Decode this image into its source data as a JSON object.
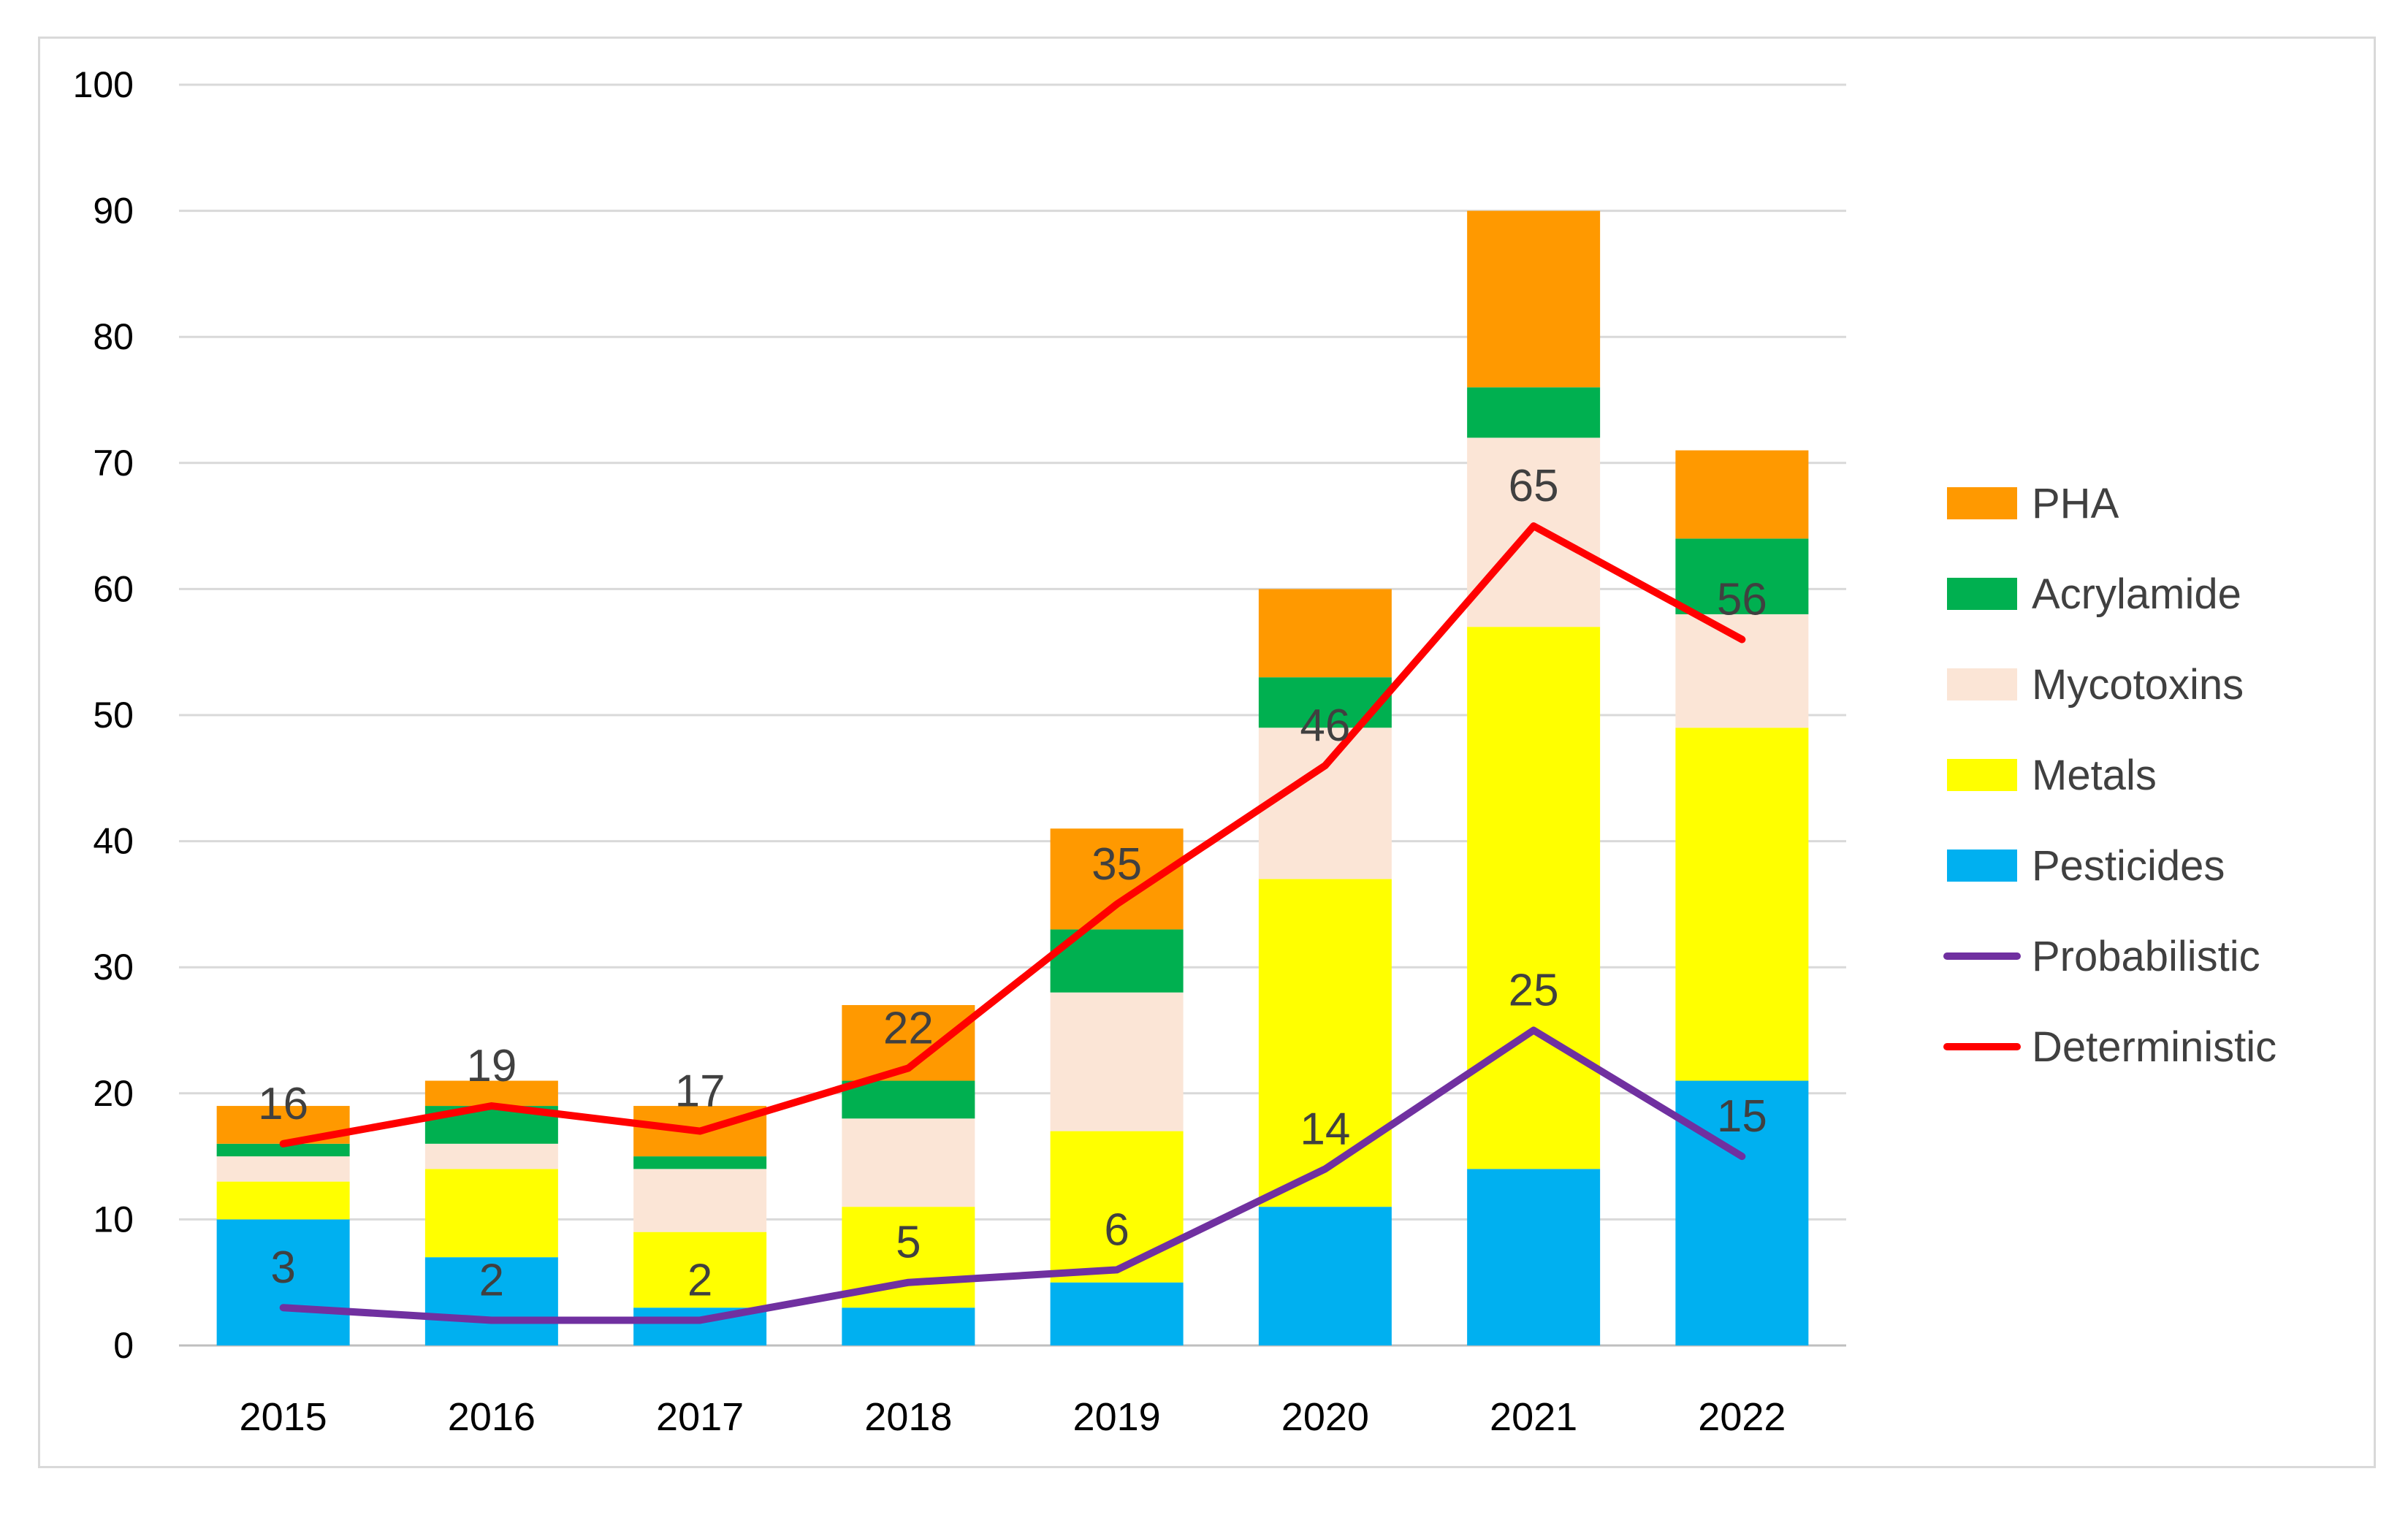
{
  "chart_data": {
    "type": "bar",
    "stacked": true,
    "title": "",
    "xlabel": "",
    "ylabel": "",
    "ylim": [
      0,
      100
    ],
    "yticks": [
      0,
      10,
      20,
      30,
      40,
      50,
      60,
      70,
      80,
      90,
      100
    ],
    "grid": true,
    "legend_position": "right",
    "categories": [
      "2015",
      "2016",
      "2017",
      "2018",
      "2019",
      "2020",
      "2021",
      "2022"
    ],
    "series": [
      {
        "name": "Pesticides",
        "kind": "bar",
        "color": "#00b0f0",
        "values": [
          10,
          7,
          3,
          3,
          5,
          11,
          14,
          21
        ]
      },
      {
        "name": "Metals",
        "kind": "bar",
        "color": "#ffff00",
        "values": [
          3,
          7,
          6,
          8,
          12,
          26,
          43,
          28
        ]
      },
      {
        "name": "Mycotoxins",
        "kind": "bar",
        "color": "#fbe5d6",
        "values": [
          2,
          2,
          5,
          7,
          11,
          12,
          15,
          9
        ]
      },
      {
        "name": "Acrylamide",
        "kind": "bar",
        "color": "#00b050",
        "values": [
          1,
          3,
          1,
          3,
          5,
          4,
          4,
          6
        ]
      },
      {
        "name": "PHA",
        "kind": "bar",
        "color": "#ff9900",
        "values": [
          3,
          2,
          4,
          6,
          8,
          7,
          14,
          7
        ]
      },
      {
        "name": "Probabilistic",
        "kind": "line",
        "color": "#7030a0",
        "values": [
          3,
          2,
          2,
          5,
          6,
          14,
          25,
          15
        ]
      },
      {
        "name": "Deterministic",
        "kind": "line",
        "color": "#ff0000",
        "values": [
          16,
          19,
          17,
          22,
          35,
          46,
          65,
          56
        ]
      }
    ],
    "legend_order": [
      "PHA",
      "Acrylamide",
      "Mycotoxins",
      "Metals",
      "Pesticides",
      "Probabilistic",
      "Deterministic"
    ]
  }
}
